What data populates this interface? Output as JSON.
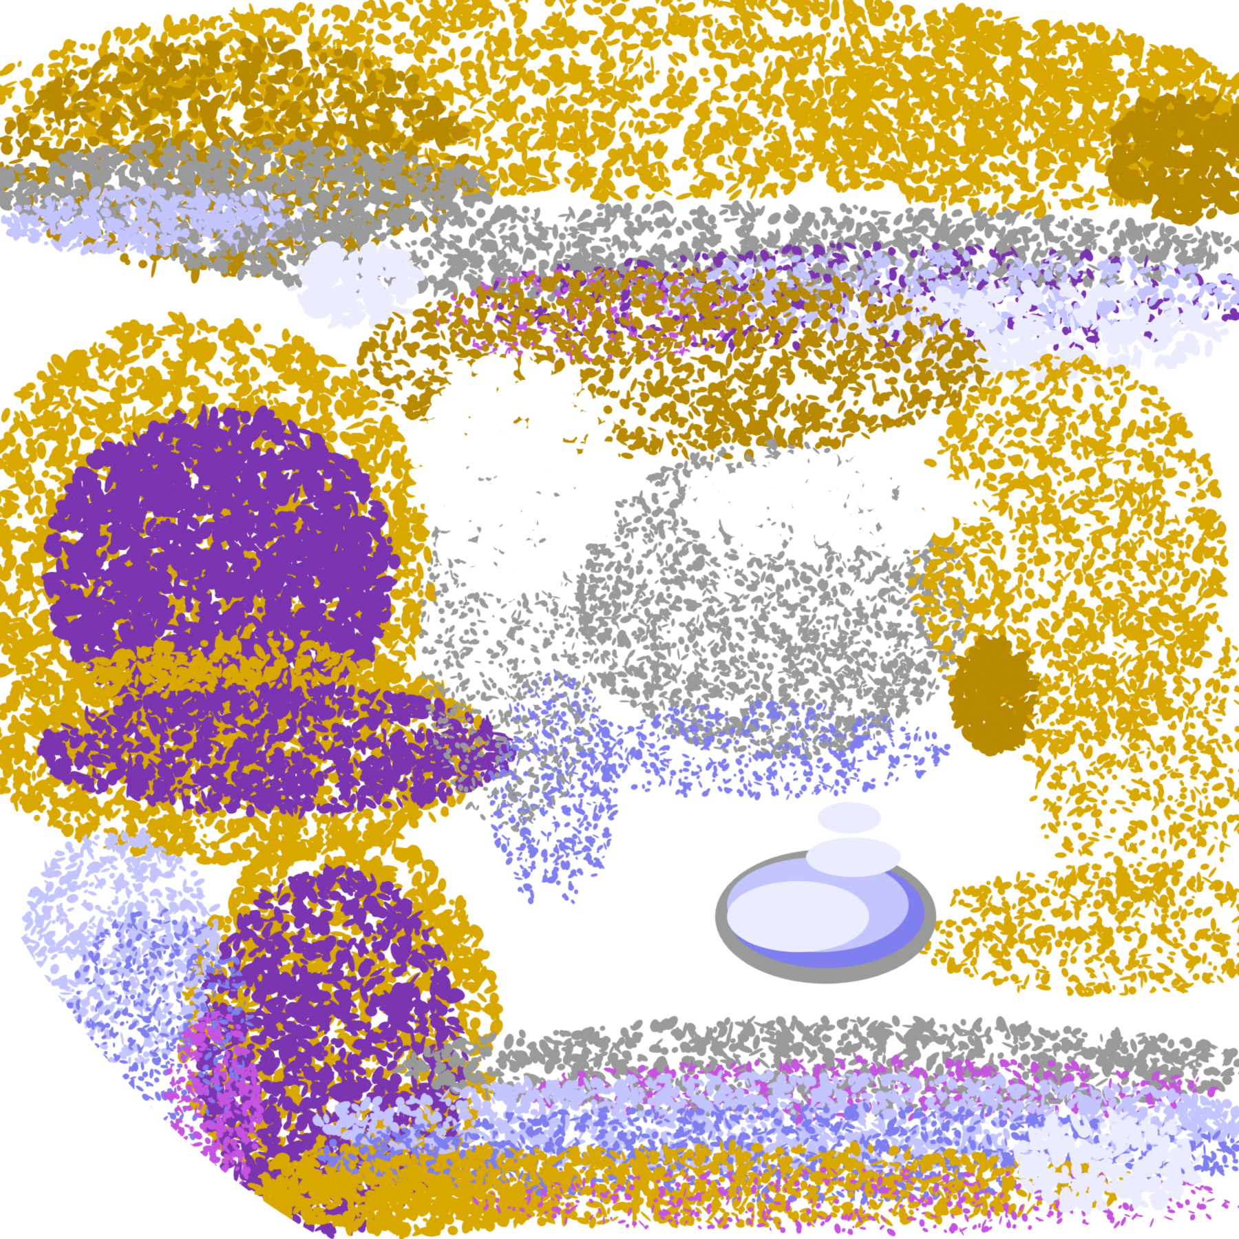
{
  "image": {
    "kind": "satellite cloud-type classification composite",
    "palette": {
      "clear": "#ffffff",
      "low_gold": "#d9a800",
      "low_dark_gold": "#b88a00",
      "purple": "#7b35b0",
      "magenta": "#c554e0",
      "grey": "#9a9a9a",
      "periwinkle": "#7f7ff0",
      "lavender": "#c4c4ff",
      "pale_lavender": "#ececff"
    },
    "disk_edge": "bottom-left"
  }
}
